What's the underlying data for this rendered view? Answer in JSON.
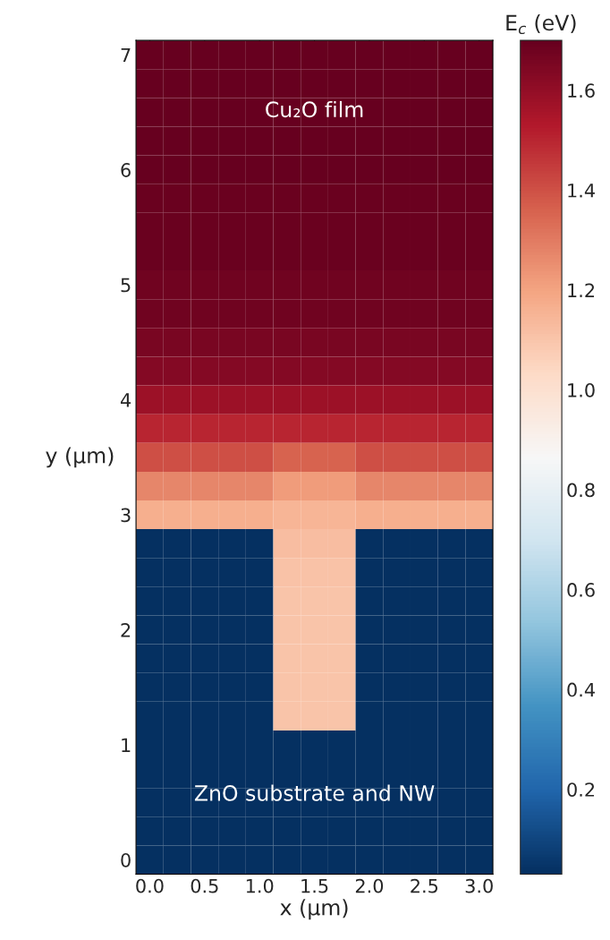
{
  "chart_data": {
    "type": "heatmap",
    "xlabel": "x (µm)",
    "ylabel": "y (µm)",
    "clabel": "E$_{c}$ (eV)",
    "categories": [
      "0.0",
      null,
      "0.5",
      null,
      "1.0",
      null,
      "1.5",
      null,
      "2.0",
      null,
      "2.5",
      null,
      "3.0"
    ],
    "y_categories": [
      "7",
      null,
      null,
      null,
      "6",
      null,
      null,
      null,
      "5",
      null,
      null,
      null,
      "4",
      null,
      null,
      null,
      "3",
      null,
      null,
      null,
      "2",
      null,
      null,
      null,
      "1",
      null,
      null,
      null,
      "0"
    ],
    "cells": [
      [
        1.7,
        1.7,
        1.7,
        1.7,
        1.7,
        1.7,
        1.7,
        1.7,
        1.7,
        1.7,
        1.7,
        1.7,
        1.7
      ],
      [
        1.7,
        1.7,
        1.7,
        1.7,
        1.7,
        1.7,
        1.7,
        1.7,
        1.7,
        1.7,
        1.7,
        1.7,
        1.7
      ],
      [
        1.7,
        1.7,
        1.7,
        1.7,
        1.7,
        1.7,
        1.7,
        1.7,
        1.7,
        1.7,
        1.7,
        1.7,
        1.7
      ],
      [
        1.7,
        1.7,
        1.7,
        1.7,
        1.7,
        1.7,
        1.7,
        1.7,
        1.7,
        1.7,
        1.7,
        1.7,
        1.7
      ],
      [
        1.7,
        1.7,
        1.7,
        1.7,
        1.7,
        1.7,
        1.7,
        1.7,
        1.7,
        1.7,
        1.7,
        1.7,
        1.7
      ],
      [
        1.69,
        1.69,
        1.69,
        1.69,
        1.69,
        1.69,
        1.69,
        1.69,
        1.69,
        1.69,
        1.69,
        1.69,
        1.69
      ],
      [
        1.69,
        1.69,
        1.69,
        1.69,
        1.69,
        1.69,
        1.69,
        1.69,
        1.69,
        1.69,
        1.69,
        1.69,
        1.69
      ],
      [
        1.69,
        1.69,
        1.69,
        1.69,
        1.69,
        1.69,
        1.69,
        1.69,
        1.69,
        1.69,
        1.69,
        1.69,
        1.69
      ],
      [
        1.68,
        1.68,
        1.68,
        1.68,
        1.68,
        1.68,
        1.68,
        1.68,
        1.68,
        1.68,
        1.68,
        1.68,
        1.68
      ],
      [
        1.68,
        1.68,
        1.68,
        1.68,
        1.68,
        1.68,
        1.68,
        1.68,
        1.68,
        1.68,
        1.68,
        1.68,
        1.68
      ],
      [
        1.66,
        1.66,
        1.66,
        1.66,
        1.66,
        1.66,
        1.66,
        1.66,
        1.66,
        1.66,
        1.66,
        1.66,
        1.66
      ],
      [
        1.63,
        1.63,
        1.63,
        1.63,
        1.63,
        1.63,
        1.63,
        1.63,
        1.63,
        1.63,
        1.63,
        1.63,
        1.63
      ],
      [
        1.58,
        1.58,
        1.58,
        1.58,
        1.58,
        1.58,
        1.58,
        1.58,
        1.58,
        1.58,
        1.58,
        1.58,
        1.58
      ],
      [
        1.5,
        1.5,
        1.5,
        1.5,
        1.5,
        1.5,
        1.5,
        1.5,
        1.5,
        1.5,
        1.5,
        1.5,
        1.5
      ],
      [
        1.4,
        1.4,
        1.4,
        1.4,
        1.4,
        1.36,
        1.36,
        1.36,
        1.4,
        1.4,
        1.4,
        1.4,
        1.4
      ],
      [
        1.27,
        1.27,
        1.27,
        1.27,
        1.27,
        1.22,
        1.22,
        1.22,
        1.27,
        1.27,
        1.27,
        1.27,
        1.27
      ],
      [
        1.17,
        1.17,
        1.17,
        1.17,
        1.17,
        1.15,
        1.15,
        1.15,
        1.17,
        1.17,
        1.17,
        1.17,
        1.17
      ],
      [
        0.03,
        0.03,
        0.03,
        0.03,
        0.03,
        1.12,
        1.12,
        1.12,
        0.03,
        0.03,
        0.03,
        0.03,
        0.03
      ],
      [
        0.03,
        0.03,
        0.03,
        0.03,
        0.03,
        1.11,
        1.11,
        1.11,
        0.03,
        0.03,
        0.03,
        0.03,
        0.03
      ],
      [
        0.03,
        0.03,
        0.03,
        0.03,
        0.03,
        1.1,
        1.1,
        1.1,
        0.03,
        0.03,
        0.03,
        0.03,
        0.03
      ],
      [
        0.03,
        0.03,
        0.03,
        0.03,
        0.03,
        1.1,
        1.1,
        1.1,
        0.03,
        0.03,
        0.03,
        0.03,
        0.03
      ],
      [
        0.03,
        0.03,
        0.03,
        0.03,
        0.03,
        1.1,
        1.1,
        1.1,
        0.03,
        0.03,
        0.03,
        0.03,
        0.03
      ],
      [
        0.03,
        0.03,
        0.03,
        0.03,
        0.03,
        1.1,
        1.1,
        1.1,
        0.03,
        0.03,
        0.03,
        0.03,
        0.03
      ],
      [
        0.03,
        0.03,
        0.03,
        0.03,
        0.03,
        1.1,
        1.1,
        1.1,
        0.03,
        0.03,
        0.03,
        0.03,
        0.03
      ],
      [
        0.03,
        0.03,
        0.03,
        0.03,
        0.03,
        0.03,
        0.03,
        0.03,
        0.03,
        0.03,
        0.03,
        0.03,
        0.03
      ],
      [
        0.03,
        0.03,
        0.03,
        0.03,
        0.03,
        0.03,
        0.03,
        0.03,
        0.03,
        0.03,
        0.03,
        0.03,
        0.03
      ],
      [
        0.03,
        0.03,
        0.03,
        0.03,
        0.03,
        0.03,
        0.03,
        0.03,
        0.03,
        0.03,
        0.03,
        0.03,
        0.03
      ],
      [
        0.03,
        0.03,
        0.03,
        0.03,
        0.03,
        0.03,
        0.03,
        0.03,
        0.03,
        0.03,
        0.03,
        0.03,
        0.03
      ],
      [
        0.03,
        0.03,
        0.03,
        0.03,
        0.03,
        0.03,
        0.03,
        0.03,
        0.03,
        0.03,
        0.03,
        0.03,
        0.03
      ]
    ],
    "clim": [
      0.03,
      1.7
    ],
    "cticks": [
      0.2,
      0.4,
      0.6,
      0.8,
      {
        "value": 1,
        "label": "1.0"
      },
      1.2,
      1.4,
      1.6
    ],
    "annotations": [
      "Cu₂O film",
      "ZnO substrate and NW"
    ]
  }
}
